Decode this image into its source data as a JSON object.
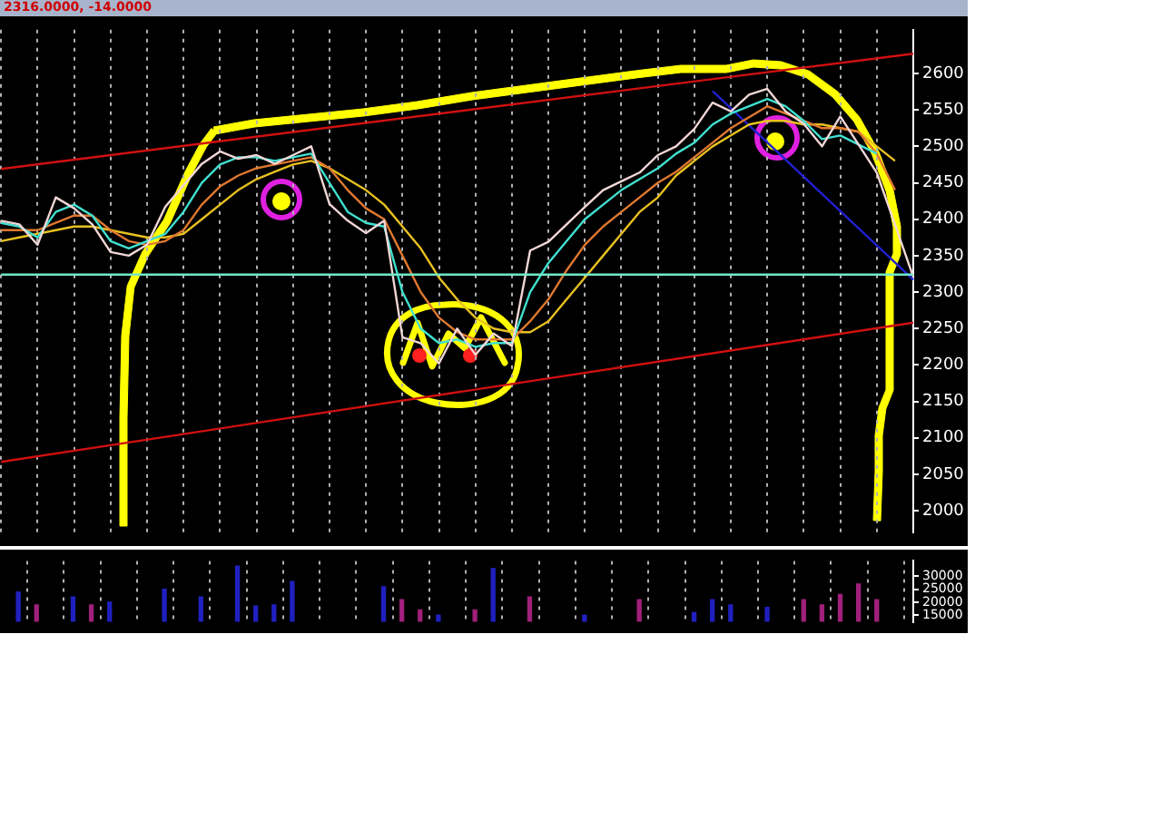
{
  "chart_data": [
    {
      "type": "line",
      "title": "2316.0000, -14.0000",
      "categories": [
        null,
        null,
        null,
        null,
        null,
        null,
        null,
        null,
        null,
        null,
        null,
        null,
        null,
        null,
        null,
        null,
        null,
        null,
        null,
        null,
        null,
        null,
        null,
        null,
        null,
        null,
        null,
        null,
        null,
        null,
        null,
        null,
        null,
        null,
        null,
        null,
        null,
        null,
        null,
        null,
        null,
        null,
        null,
        null,
        null,
        null,
        null,
        null,
        null,
        null,
        null
      ],
      "series": [
        {
          "type": "line",
          "color": "#f2d6d6",
          "values": [
            2398,
            2393,
            2365,
            2430,
            2415,
            2393,
            2355,
            2350,
            2365,
            2417,
            null,
            2476,
            2493,
            2483,
            2488,
            2476,
            2488,
            2500,
            2421,
            2398,
            2381,
            2398,
            2238,
            2230,
            2202,
            2250,
            2214,
            2243,
            2226,
            2357,
            2369,
            2393,
            2417,
            2440,
            2452,
            2464,
            2488,
            2500,
            2524,
            2560,
            2548,
            2571,
            2579,
            2548,
            2531,
            2500,
            2541,
            null,
            2464,
            null,
            2321
          ]
        },
        {
          "type": "line",
          "color": "#40e0d0",
          "values": [
            2395,
            2390,
            2375,
            2410,
            2420,
            2405,
            2370,
            2360,
            null,
            2380,
            2410,
            2450,
            2475,
            2485,
            2485,
            2480,
            2485,
            2490,
            2450,
            2410,
            2395,
            2390,
            2300,
            2250,
            2230,
            2235,
            2225,
            2230,
            2230,
            2300,
            2340,
            2370,
            2400,
            2420,
            2440,
            2455,
            2470,
            2490,
            2505,
            2530,
            2545,
            2555,
            2565,
            2555,
            2535,
            2510,
            2515,
            null,
            2490,
            null,
            null
          ]
        },
        {
          "type": "line",
          "color": "#e07830",
          "values": [
            2385,
            2385,
            2385,
            2395,
            2405,
            2405,
            2385,
            2370,
            2365,
            2370,
            2385,
            2420,
            2445,
            2460,
            2470,
            2475,
            2480,
            2485,
            2470,
            2440,
            2415,
            2400,
            2350,
            2300,
            2265,
            2245,
            2235,
            2235,
            2235,
            2260,
            2290,
            2330,
            2365,
            2390,
            2410,
            2430,
            2450,
            2465,
            2485,
            2505,
            2525,
            2540,
            2555,
            2545,
            2535,
            2525,
            2525,
            2520,
            2490,
            2440,
            null
          ]
        },
        {
          "type": "line",
          "color": "#e8c020",
          "values": [
            2370,
            2375,
            2380,
            2385,
            2390,
            2390,
            2385,
            2380,
            2375,
            2375,
            2380,
            2400,
            2420,
            2440,
            2455,
            2465,
            2475,
            2480,
            2470,
            2455,
            2440,
            2420,
            2390,
            2360,
            2320,
            2290,
            2265,
            2250,
            2245,
            2245,
            2260,
            2290,
            2320,
            2350,
            2380,
            2410,
            2430,
            2460,
            2480,
            2500,
            2515,
            2530,
            2535,
            2535,
            2530,
            2530,
            2525,
            2520,
            2500,
            2480,
            null
          ]
        },
        {
          "type": "line",
          "color": "#d01010",
          "values": [
            2469,
            null,
            null,
            null,
            null,
            null,
            null,
            null,
            null,
            null,
            null,
            null,
            null,
            null,
            null,
            null,
            null,
            null,
            null,
            null,
            null,
            null,
            null,
            null,
            null,
            null,
            null,
            null,
            null,
            null,
            null,
            null,
            null,
            null,
            null,
            null,
            null,
            null,
            null,
            null,
            null,
            null,
            null,
            null,
            null,
            null,
            null,
            null,
            null,
            null,
            2627
          ]
        },
        {
          "type": "line",
          "color": "#d01010",
          "values": [
            2067,
            null,
            null,
            null,
            null,
            null,
            null,
            null,
            null,
            null,
            null,
            null,
            null,
            null,
            null,
            null,
            null,
            null,
            null,
            null,
            null,
            null,
            null,
            null,
            null,
            null,
            null,
            null,
            null,
            null,
            null,
            null,
            null,
            null,
            null,
            null,
            null,
            null,
            null,
            null,
            null,
            null,
            null,
            null,
            null,
            null,
            null,
            null,
            null,
            null,
            2258
          ]
        },
        {
          "type": "line",
          "color": "#2020d0",
          "values": [
            null,
            null,
            null,
            null,
            null,
            null,
            null,
            null,
            null,
            null,
            null,
            null,
            null,
            null,
            null,
            null,
            null,
            null,
            null,
            null,
            null,
            null,
            null,
            null,
            null,
            null,
            null,
            null,
            null,
            null,
            null,
            null,
            null,
            null,
            null,
            null,
            null,
            null,
            null,
            2576,
            null,
            null,
            null,
            null,
            null,
            null,
            null,
            null,
            null,
            null,
            2317
          ]
        }
      ],
      "ref_lines": [
        {
          "axis": "y",
          "value": 2324,
          "color": "#70e8c8"
        }
      ],
      "ylim": [
        1970,
        2660
      ],
      "yticks": [
        2000,
        2050,
        2100,
        2150,
        2200,
        2250,
        2300,
        2350,
        2400,
        2450,
        2500,
        2550,
        2600
      ],
      "grid": "x",
      "legend": false,
      "tick_labels": "y"
    },
    {
      "type": "bar",
      "categories": [
        null,
        null,
        null,
        null,
        null,
        null,
        null,
        null,
        null,
        null,
        null,
        null,
        null,
        null,
        null,
        null,
        null,
        null,
        null,
        null,
        null,
        null,
        null,
        null,
        null,
        null,
        null,
        null,
        null,
        null,
        null,
        null,
        null,
        null,
        null,
        null,
        null,
        null,
        null,
        null,
        null,
        null,
        null,
        null,
        null,
        null,
        null,
        null,
        null,
        null,
        null
      ],
      "values": [
        null,
        24000,
        19000,
        null,
        22000,
        19000,
        20000,
        null,
        null,
        25000,
        null,
        22000,
        null,
        34000,
        18500,
        19000,
        28000,
        null,
        null,
        null,
        null,
        26000,
        21000,
        17000,
        15000,
        null,
        17000,
        33000,
        null,
        22000,
        null,
        null,
        15000,
        null,
        null,
        21000,
        null,
        null,
        16000,
        21000,
        19000,
        null,
        18000,
        null,
        21000,
        19000,
        23000,
        27000,
        21000,
        null,
        null
      ],
      "colors": [
        "#2020c0",
        "#2020c0",
        "#a0207a",
        "#2020c0",
        "#2020c0",
        "#a0207a",
        "#2020c0",
        "#2020c0",
        "#2020c0",
        "#2020c0",
        "#2020c0",
        "#2020c0",
        "#2020c0",
        "#2020c0",
        "#2020c0",
        "#2020c0",
        "#2020c0",
        "#2020c0",
        "#2020c0",
        "#2020c0",
        "#2020c0",
        "#2020c0",
        "#a0207a",
        "#a0207a",
        "#2020c0",
        "#2020c0",
        "#a0207a",
        "#2020c0",
        "#2020c0",
        "#a0207a",
        "#2020c0",
        "#2020c0",
        "#2020c0",
        "#2020c0",
        "#2020c0",
        "#a0207a",
        "#2020c0",
        "#2020c0",
        "#2020c0",
        "#2020c0",
        "#2020c0",
        "#2020c0",
        "#2020c0",
        "#2020c0",
        "#a0207a",
        "#a0207a",
        "#a0207a",
        "#a0207a",
        "#a0207a",
        "#2020c0",
        "#2020c0"
      ],
      "ylim": [
        12400,
        36000
      ],
      "yticks": [
        15000,
        20000,
        25000,
        30000
      ],
      "grid": "x",
      "legend": false,
      "tick_labels": "y"
    }
  ]
}
